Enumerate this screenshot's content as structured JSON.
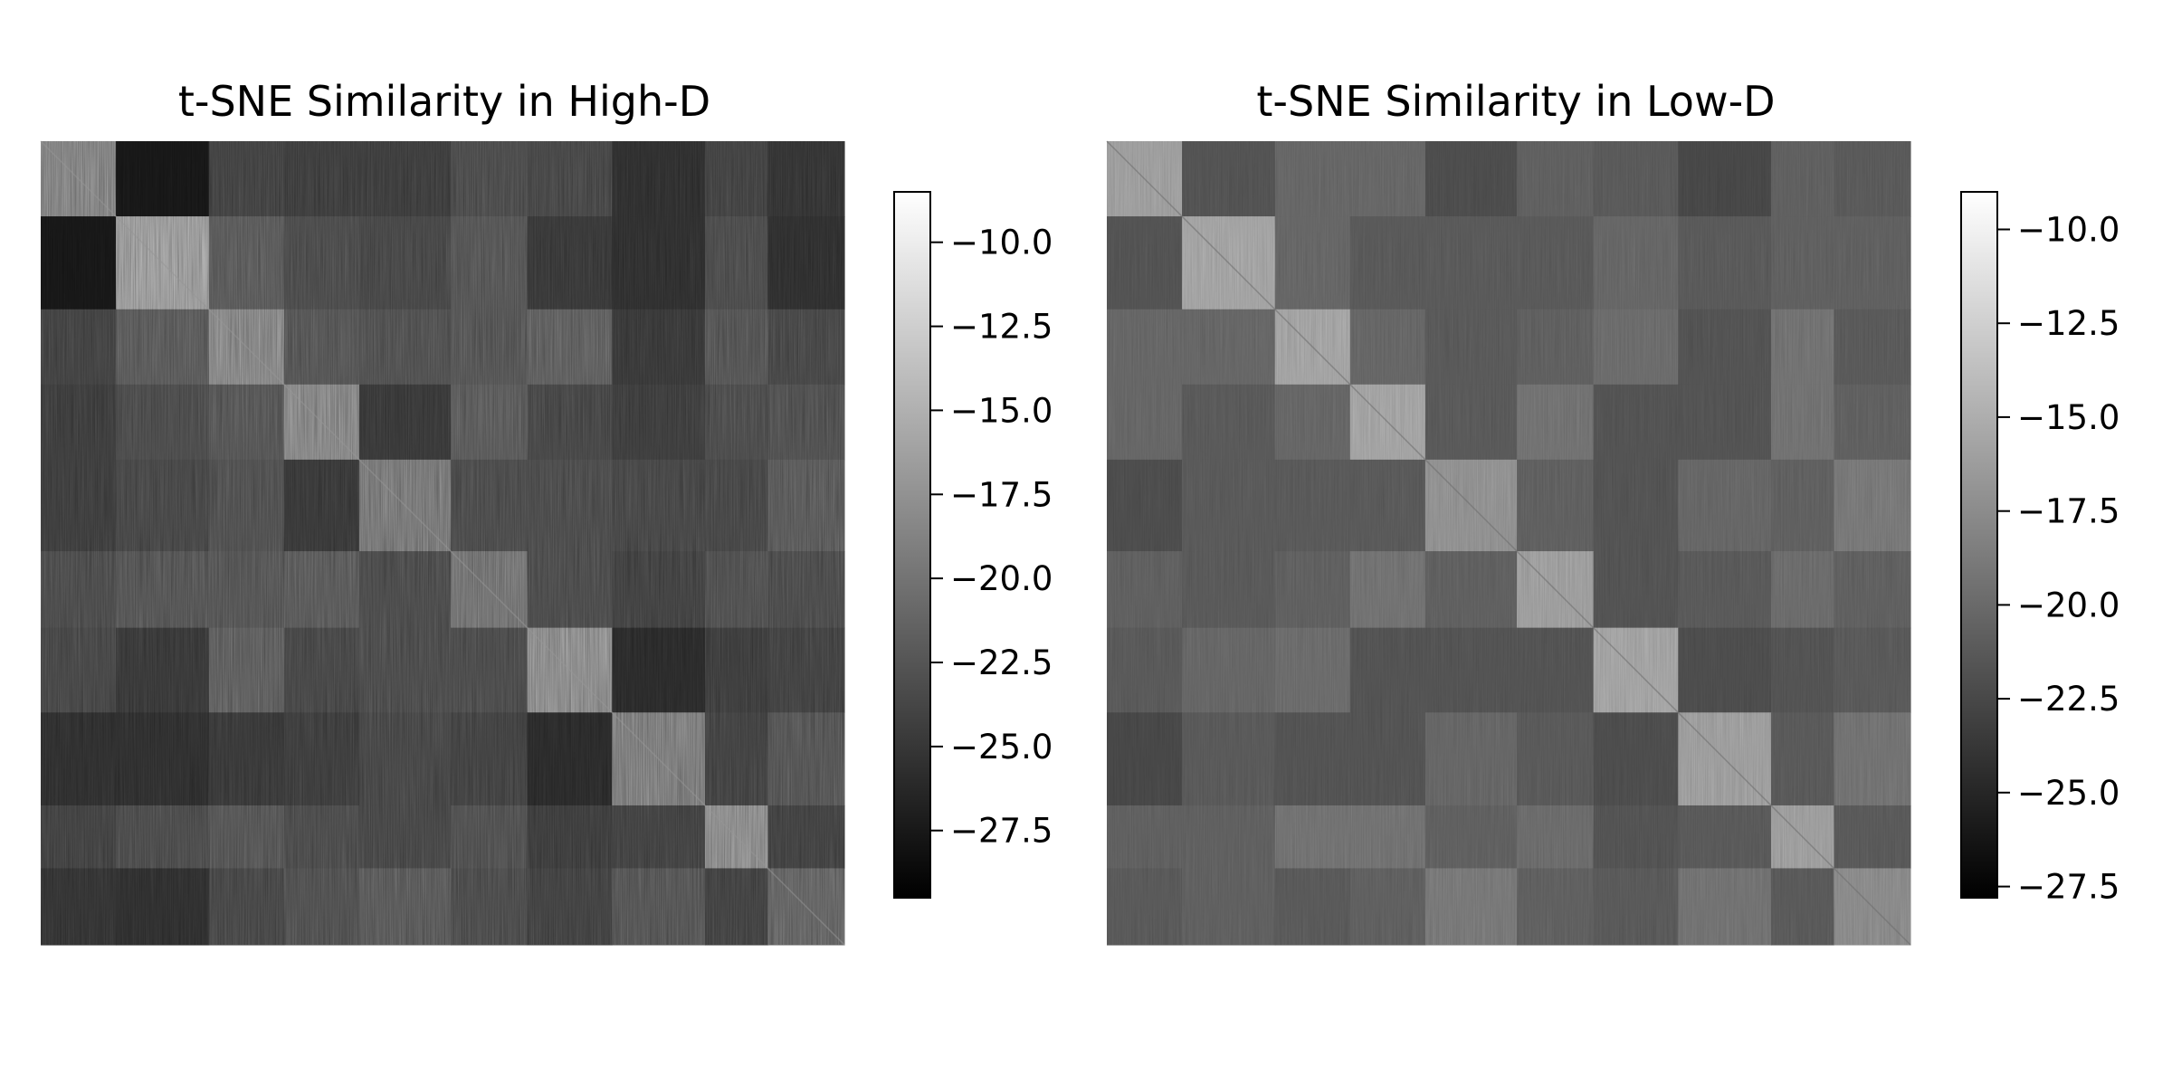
{
  "chart_data": [
    {
      "type": "heatmap",
      "title": "t-SNE Similarity in High-D",
      "xlabel": "",
      "ylabel": "",
      "axes_visible": false,
      "grid": false,
      "block_boundaries": [
        0,
        55,
        123,
        178,
        233,
        300,
        356,
        418,
        486,
        532,
        588
      ],
      "matrix": [
        [
          -16.0,
          -27.0,
          -22.5,
          -23.0,
          -23.0,
          -21.5,
          -22.0,
          -24.5,
          -22.5,
          -24.0
        ],
        [
          -27.0,
          -13.5,
          -20.0,
          -21.5,
          -22.0,
          -20.5,
          -23.5,
          -24.5,
          -21.5,
          -24.5
        ],
        [
          -22.5,
          -20.0,
          -15.5,
          -20.5,
          -21.0,
          -20.5,
          -19.5,
          -23.5,
          -20.5,
          -22.0
        ],
        [
          -23.0,
          -21.5,
          -20.5,
          -15.5,
          -23.5,
          -20.0,
          -22.0,
          -23.0,
          -21.5,
          -21.0
        ],
        [
          -23.0,
          -22.0,
          -21.0,
          -23.5,
          -17.0,
          -21.5,
          -21.5,
          -22.0,
          -22.0,
          -20.0
        ],
        [
          -21.5,
          -20.5,
          -20.5,
          -20.0,
          -21.5,
          -17.5,
          -21.5,
          -22.5,
          -21.0,
          -21.5
        ],
        [
          -22.0,
          -23.5,
          -19.5,
          -22.0,
          -21.5,
          -21.5,
          -15.0,
          -25.0,
          -23.0,
          -22.5
        ],
        [
          -24.5,
          -24.5,
          -23.5,
          -23.0,
          -22.0,
          -22.5,
          -25.0,
          -16.5,
          -22.5,
          -20.5
        ],
        [
          -22.5,
          -21.5,
          -20.5,
          -21.5,
          -22.0,
          -21.0,
          -23.0,
          -22.5,
          -15.0,
          -22.5
        ],
        [
          -24.0,
          -24.5,
          -22.0,
          -21.0,
          -20.0,
          -21.5,
          -22.5,
          -20.5,
          -22.5,
          -19.0
        ]
      ],
      "colormap": "gray",
      "colorbar": {
        "vmin": -29.5,
        "vmax": -8.5,
        "ticks": [
          -10.0,
          -12.5,
          -15.0,
          -17.5,
          -20.0,
          -22.5,
          -25.0,
          -27.5
        ],
        "tick_labels": [
          "−10.0",
          "−12.5",
          "−15.0",
          "−17.5",
          "−20.0",
          "−22.5",
          "−25.0",
          "−27.5"
        ]
      }
    },
    {
      "type": "heatmap",
      "title": "t-SNE Similarity in Low-D",
      "xlabel": "",
      "ylabel": "",
      "axes_visible": false,
      "grid": false,
      "block_boundaries": [
        0,
        55,
        123,
        178,
        233,
        300,
        356,
        418,
        486,
        532,
        588
      ],
      "matrix": [
        [
          -15.0,
          -21.0,
          -19.5,
          -19.5,
          -21.5,
          -20.0,
          -20.5,
          -22.0,
          -20.0,
          -20.5
        ],
        [
          -21.0,
          -14.5,
          -19.5,
          -20.5,
          -20.5,
          -20.5,
          -19.5,
          -20.5,
          -20.0,
          -20.0
        ],
        [
          -19.5,
          -19.5,
          -14.5,
          -19.5,
          -20.5,
          -20.0,
          -19.0,
          -21.0,
          -18.5,
          -20.5
        ],
        [
          -19.5,
          -20.5,
          -19.5,
          -14.5,
          -20.5,
          -18.5,
          -21.0,
          -21.0,
          -18.5,
          -20.0
        ],
        [
          -21.5,
          -20.5,
          -20.5,
          -20.5,
          -16.0,
          -20.0,
          -21.0,
          -19.5,
          -20.0,
          -18.0
        ],
        [
          -20.0,
          -20.5,
          -20.0,
          -18.5,
          -20.0,
          -15.0,
          -21.0,
          -20.5,
          -19.0,
          -20.0
        ],
        [
          -20.5,
          -19.5,
          -19.0,
          -21.0,
          -21.0,
          -21.0,
          -14.5,
          -21.5,
          -21.0,
          -20.5
        ],
        [
          -22.0,
          -20.5,
          -21.0,
          -21.0,
          -19.5,
          -20.5,
          -21.5,
          -15.0,
          -20.5,
          -18.5
        ],
        [
          -20.0,
          -20.0,
          -18.5,
          -18.5,
          -20.0,
          -19.0,
          -21.0,
          -20.5,
          -15.0,
          -20.5
        ],
        [
          -20.5,
          -20.0,
          -20.5,
          -20.0,
          -18.0,
          -20.0,
          -20.5,
          -18.5,
          -20.5,
          -16.5
        ]
      ],
      "colormap": "gray",
      "colorbar": {
        "vmin": -27.8,
        "vmax": -9.0,
        "ticks": [
          -10.0,
          -12.5,
          -15.0,
          -17.5,
          -20.0,
          -22.5,
          -25.0,
          -27.5
        ],
        "tick_labels": [
          "−10.0",
          "−12.5",
          "−15.0",
          "−17.5",
          "−20.0",
          "−22.5",
          "−25.0",
          "−27.5"
        ]
      }
    }
  ]
}
